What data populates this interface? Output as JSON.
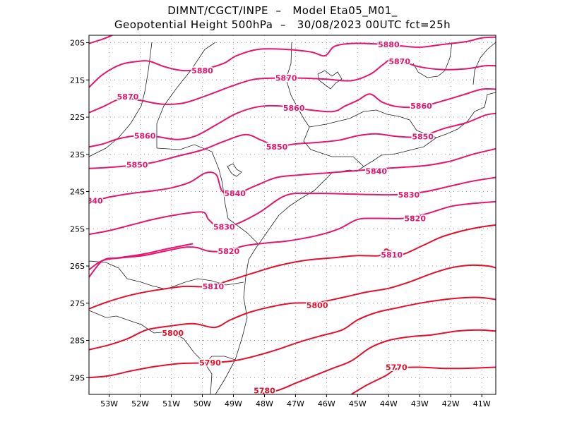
{
  "header": {
    "line1": "DIMNT/CGCT/INPE  –   Model Eta05_M01_",
    "line2": "Geopotential Height 500hPa  –   30/08/2023 00UTC fct=25h"
  },
  "map": {
    "lon_range": [
      -53.65,
      -40.55
    ],
    "lat_range": [
      -29.45,
      -19.8
    ],
    "lat_ticks": [
      {
        "value": -20,
        "label": "20S"
      },
      {
        "value": -21,
        "label": "21S"
      },
      {
        "value": -22,
        "label": "22S"
      },
      {
        "value": -23,
        "label": "23S"
      },
      {
        "value": -24,
        "label": "24S"
      },
      {
        "value": -25,
        "label": "25S"
      },
      {
        "value": -26,
        "label": "26S"
      },
      {
        "value": -27,
        "label": "27S"
      },
      {
        "value": -28,
        "label": "28S"
      },
      {
        "value": -29,
        "label": "29S"
      }
    ],
    "lon_ticks": [
      {
        "value": -53,
        "label": "53W"
      },
      {
        "value": -52,
        "label": "52W"
      },
      {
        "value": -51,
        "label": "51W"
      },
      {
        "value": -50,
        "label": "50W"
      },
      {
        "value": -49,
        "label": "49W"
      },
      {
        "value": -48,
        "label": "48W"
      },
      {
        "value": -47,
        "label": "47W"
      },
      {
        "value": -46,
        "label": "46W"
      },
      {
        "value": -45,
        "label": "45W"
      },
      {
        "value": -44,
        "label": "44W"
      },
      {
        "value": -43,
        "label": "43W"
      },
      {
        "value": -42,
        "label": "42W"
      },
      {
        "value": -41,
        "label": "41W"
      }
    ],
    "grid": true
  },
  "contours": [
    {
      "level": 5880,
      "color": "#e6156e",
      "points": [
        [
          -53.65,
          -20.02
        ],
        [
          -53.2,
          -19.9
        ],
        [
          -52.9,
          -19.8
        ]
      ]
    },
    {
      "level": 5880,
      "color": "#e6156e",
      "label": "5880",
      "labels_at": [
        [
          -50.0,
          -20.75
        ],
        [
          -44.0,
          -20.05
        ]
      ],
      "points": [
        [
          -53.65,
          -21.2
        ],
        [
          -53.2,
          -20.85
        ],
        [
          -52.6,
          -20.58
        ],
        [
          -52.05,
          -20.5
        ],
        [
          -51.7,
          -20.5
        ],
        [
          -51.2,
          -20.65
        ],
        [
          -50.6,
          -20.75
        ],
        [
          -49.9,
          -20.7
        ],
        [
          -49.3,
          -20.55
        ],
        [
          -48.9,
          -20.35
        ],
        [
          -48.2,
          -20.18
        ],
        [
          -47.3,
          -20.18
        ],
        [
          -46.5,
          -20.25
        ],
        [
          -46.05,
          -20.35
        ],
        [
          -45.75,
          -20.1
        ],
        [
          -45.2,
          -20.02
        ],
        [
          -44.5,
          -20.03
        ],
        [
          -43.8,
          -20.07
        ],
        [
          -43.0,
          -20.12
        ],
        [
          -42.3,
          -20.05
        ],
        [
          -41.5,
          -19.97
        ],
        [
          -41.0,
          -19.87
        ],
        [
          -40.55,
          -19.85
        ]
      ]
    },
    {
      "level": 5870,
      "color": "#e6156e",
      "label": "5870",
      "labels_at": [
        [
          -52.4,
          -21.45
        ],
        [
          -47.3,
          -20.95
        ],
        [
          -43.65,
          -20.5
        ]
      ],
      "points": [
        [
          -53.65,
          -21.88
        ],
        [
          -53.2,
          -21.72
        ],
        [
          -52.6,
          -21.5
        ],
        [
          -52.0,
          -21.55
        ],
        [
          -51.3,
          -21.65
        ],
        [
          -50.6,
          -21.62
        ],
        [
          -49.8,
          -21.4
        ],
        [
          -49.0,
          -21.15
        ],
        [
          -48.3,
          -20.98
        ],
        [
          -47.5,
          -20.95
        ],
        [
          -46.8,
          -20.95
        ],
        [
          -46.0,
          -20.98
        ],
        [
          -45.2,
          -21.02
        ],
        [
          -44.6,
          -20.85
        ],
        [
          -44.2,
          -20.6
        ],
        [
          -43.9,
          -20.45
        ],
        [
          -43.4,
          -20.55
        ],
        [
          -43.0,
          -20.65
        ],
        [
          -42.3,
          -20.72
        ],
        [
          -41.5,
          -20.7
        ],
        [
          -40.9,
          -20.62
        ],
        [
          -40.55,
          -20.62
        ]
      ]
    },
    {
      "level": 5860,
      "color": "#e6156e",
      "label": "5860",
      "labels_at": [
        [
          -51.85,
          -22.5
        ],
        [
          -47.05,
          -21.75
        ],
        [
          -42.95,
          -21.7
        ]
      ],
      "points": [
        [
          -53.65,
          -22.8
        ],
        [
          -53.2,
          -22.72
        ],
        [
          -52.7,
          -22.58
        ],
        [
          -52.1,
          -22.5
        ],
        [
          -51.5,
          -22.52
        ],
        [
          -50.8,
          -22.6
        ],
        [
          -50.2,
          -22.5
        ],
        [
          -49.5,
          -22.18
        ],
        [
          -48.9,
          -21.9
        ],
        [
          -48.2,
          -21.72
        ],
        [
          -47.5,
          -21.7
        ],
        [
          -46.6,
          -21.8
        ],
        [
          -45.8,
          -21.85
        ],
        [
          -45.4,
          -21.7
        ],
        [
          -45.0,
          -21.55
        ],
        [
          -44.6,
          -21.38
        ],
        [
          -44.2,
          -21.6
        ],
        [
          -43.7,
          -21.72
        ],
        [
          -43.0,
          -21.72
        ],
        [
          -42.2,
          -21.55
        ],
        [
          -41.6,
          -21.4
        ],
        [
          -41.0,
          -21.25
        ],
        [
          -40.55,
          -21.25
        ]
      ]
    },
    {
      "level": 5850,
      "color": "#e6156e",
      "label": "5850",
      "labels_at": [
        [
          -52.1,
          -23.28
        ],
        [
          -47.6,
          -22.8
        ],
        [
          -42.9,
          -22.52
        ]
      ],
      "points": [
        [
          -53.65,
          -23.38
        ],
        [
          -53.0,
          -23.35
        ],
        [
          -52.3,
          -23.3
        ],
        [
          -51.6,
          -23.22
        ],
        [
          -50.8,
          -23.05
        ],
        [
          -50.0,
          -22.88
        ],
        [
          -49.3,
          -22.65
        ],
        [
          -48.6,
          -22.47
        ],
        [
          -48.1,
          -22.62
        ],
        [
          -47.6,
          -22.78
        ],
        [
          -47.0,
          -22.72
        ],
        [
          -46.3,
          -22.68
        ],
        [
          -45.6,
          -22.62
        ],
        [
          -45.0,
          -22.5
        ],
        [
          -44.4,
          -22.45
        ],
        [
          -43.7,
          -22.52
        ],
        [
          -43.0,
          -22.52
        ],
        [
          -42.2,
          -22.3
        ],
        [
          -41.5,
          -22.15
        ],
        [
          -40.9,
          -21.95
        ],
        [
          -40.55,
          -21.9
        ]
      ]
    },
    {
      "level": 5840,
      "color": "#e6156e",
      "label": "5840",
      "labels_at": [
        [
          -53.55,
          -24.25
        ],
        [
          -48.95,
          -24.05
        ],
        [
          -44.4,
          -23.45
        ]
      ],
      "points": [
        [
          -53.65,
          -24.28
        ],
        [
          -53.0,
          -24.15
        ],
        [
          -52.3,
          -24.05
        ],
        [
          -51.6,
          -23.98
        ],
        [
          -51.0,
          -23.9
        ],
        [
          -50.4,
          -23.75
        ],
        [
          -49.9,
          -23.5
        ],
        [
          -49.55,
          -23.55
        ],
        [
          -49.35,
          -24.0
        ],
        [
          -48.9,
          -24.05
        ],
        [
          -48.3,
          -23.85
        ],
        [
          -47.6,
          -23.62
        ],
        [
          -46.8,
          -23.55
        ],
        [
          -46.0,
          -23.5
        ],
        [
          -45.2,
          -23.45
        ],
        [
          -44.5,
          -23.4
        ],
        [
          -43.6,
          -23.35
        ],
        [
          -42.8,
          -23.3
        ],
        [
          -42.0,
          -23.18
        ],
        [
          -41.3,
          -23.0
        ],
        [
          -40.55,
          -22.85
        ]
      ]
    },
    {
      "level": 5830,
      "color": "#e6156e",
      "label": "5830",
      "labels_at": [
        [
          -49.3,
          -24.95
        ],
        [
          -43.35,
          -24.08
        ]
      ],
      "points": [
        [
          -53.65,
          -25.15
        ],
        [
          -53.0,
          -25.05
        ],
        [
          -52.3,
          -24.9
        ],
        [
          -51.6,
          -24.75
        ],
        [
          -50.8,
          -24.62
        ],
        [
          -50.0,
          -24.55
        ],
        [
          -49.8,
          -24.75
        ],
        [
          -49.5,
          -24.93
        ],
        [
          -49.0,
          -24.9
        ],
        [
          -48.2,
          -24.58
        ],
        [
          -47.3,
          -24.1
        ],
        [
          -46.4,
          -24.05
        ],
        [
          -45.5,
          -24.06
        ],
        [
          -44.6,
          -24.08
        ],
        [
          -43.6,
          -24.08
        ],
        [
          -42.8,
          -24.0
        ],
        [
          -42.0,
          -23.85
        ],
        [
          -41.3,
          -23.72
        ],
        [
          -40.55,
          -23.62
        ]
      ]
    },
    {
      "level": 5820,
      "color": "#e6156e",
      "label": "5820",
      "labels_at": [
        [
          -49.15,
          -25.6
        ],
        [
          -43.15,
          -24.72
        ]
      ],
      "points": [
        [
          -53.65,
          -26.1
        ],
        [
          -53.2,
          -25.85
        ],
        [
          -52.6,
          -25.78
        ],
        [
          -51.9,
          -25.72
        ],
        [
          -51.2,
          -25.6
        ],
        [
          -50.6,
          -25.5
        ],
        [
          -50.2,
          -25.5
        ],
        [
          -49.8,
          -25.6
        ],
        [
          -49.3,
          -25.6
        ],
        [
          -48.6,
          -25.45
        ],
        [
          -47.9,
          -25.38
        ],
        [
          -47.2,
          -25.32
        ],
        [
          -46.3,
          -25.18
        ],
        [
          -45.6,
          -25.0
        ],
        [
          -45.0,
          -24.75
        ],
        [
          -44.4,
          -24.72
        ],
        [
          -43.5,
          -24.72
        ],
        [
          -42.8,
          -24.6
        ],
        [
          -42.0,
          -24.4
        ],
        [
          -41.3,
          -24.32
        ],
        [
          -40.55,
          -24.27
        ]
      ]
    },
    {
      "level": 5810,
      "color": "#e6156e",
      "label": "5810",
      "labels_at": [
        [
          -49.65,
          -26.55
        ],
        [
          -43.9,
          -25.7
        ]
      ],
      "points": [
        [
          -53.65,
          -26.3
        ],
        [
          -53.2,
          -25.85
        ],
        [
          -52.7,
          -25.78
        ],
        [
          -51.9,
          -25.68
        ],
        [
          -51.2,
          -25.55
        ],
        [
          -50.3,
          -25.4
        ]
      ]
    },
    {
      "level": 5810,
      "color": "#e60f2b",
      "label": "5810",
      "labels_at": [
        [
          -49.65,
          -26.55
        ],
        [
          -43.9,
          -25.7
        ]
      ],
      "points": [
        [
          -53.65,
          -27.15
        ],
        [
          -53.0,
          -26.95
        ],
        [
          -52.3,
          -26.78
        ],
        [
          -51.5,
          -26.65
        ],
        [
          -50.6,
          -26.55
        ],
        [
          -49.8,
          -26.55
        ],
        [
          -49.1,
          -26.38
        ],
        [
          -48.4,
          -26.2
        ],
        [
          -47.6,
          -26.0
        ],
        [
          -46.7,
          -25.85
        ],
        [
          -45.8,
          -25.78
        ],
        [
          -45.0,
          -25.72
        ],
        [
          -44.3,
          -25.72
        ],
        [
          -44.1,
          -25.55
        ],
        [
          -43.95,
          -25.6
        ],
        [
          -43.6,
          -25.7
        ],
        [
          -42.9,
          -25.45
        ],
        [
          -42.3,
          -25.22
        ],
        [
          -41.6,
          -25.05
        ],
        [
          -41.0,
          -24.95
        ],
        [
          -40.55,
          -24.9
        ]
      ]
    },
    {
      "level": 5800,
      "color": "#e60f2b",
      "label": "5800",
      "labels_at": [
        [
          -50.95,
          -27.8
        ],
        [
          -46.3,
          -27.05
        ]
      ],
      "points": [
        [
          -53.65,
          -28.25
        ],
        [
          -53.0,
          -28.12
        ],
        [
          -52.4,
          -27.95
        ],
        [
          -51.8,
          -27.72
        ],
        [
          -51.1,
          -27.62
        ],
        [
          -50.3,
          -27.55
        ],
        [
          -49.6,
          -27.65
        ],
        [
          -49.1,
          -27.45
        ],
        [
          -48.5,
          -27.25
        ],
        [
          -47.8,
          -27.1
        ],
        [
          -47.1,
          -27.0
        ],
        [
          -46.3,
          -26.98
        ],
        [
          -45.5,
          -26.85
        ],
        [
          -44.7,
          -26.7
        ],
        [
          -44.0,
          -26.6
        ],
        [
          -43.3,
          -26.42
        ],
        [
          -42.6,
          -26.2
        ],
        [
          -42.0,
          -26.05
        ],
        [
          -41.4,
          -25.98
        ],
        [
          -40.8,
          -26.0
        ],
        [
          -40.55,
          -26.05
        ]
      ]
    },
    {
      "level": 5790,
      "color": "#e60f2b",
      "label": "5790",
      "labels_at": [
        [
          -49.75,
          -28.6
        ]
      ],
      "points": [
        [
          -53.65,
          -29.0
        ],
        [
          -53.0,
          -28.95
        ],
        [
          -52.3,
          -28.82
        ],
        [
          -51.5,
          -28.7
        ],
        [
          -50.7,
          -28.62
        ],
        [
          -49.8,
          -28.6
        ],
        [
          -49.0,
          -28.55
        ],
        [
          -48.3,
          -28.42
        ],
        [
          -47.6,
          -28.25
        ],
        [
          -46.9,
          -28.05
        ],
        [
          -46.2,
          -27.88
        ],
        [
          -45.5,
          -27.72
        ],
        [
          -45.0,
          -27.45
        ],
        [
          -44.4,
          -27.25
        ],
        [
          -43.7,
          -27.12
        ],
        [
          -43.0,
          -27.0
        ],
        [
          -42.2,
          -26.9
        ],
        [
          -41.5,
          -26.85
        ],
        [
          -41.0,
          -26.85
        ],
        [
          -40.55,
          -26.9
        ]
      ]
    },
    {
      "level": 5780,
      "color": "#e60f2b",
      "label": "5780",
      "labels_at": [
        [
          -48.0,
          -29.35
        ]
      ],
      "points": [
        [
          -48.3,
          -29.45
        ],
        [
          -47.6,
          -29.35
        ],
        [
          -47.0,
          -29.15
        ],
        [
          -46.4,
          -28.95
        ],
        [
          -45.8,
          -28.75
        ],
        [
          -45.2,
          -28.55
        ],
        [
          -44.6,
          -28.2
        ],
        [
          -44.0,
          -28.0
        ],
        [
          -43.3,
          -27.9
        ],
        [
          -42.6,
          -27.85
        ],
        [
          -41.8,
          -27.75
        ],
        [
          -41.1,
          -27.72
        ],
        [
          -40.55,
          -27.75
        ]
      ]
    },
    {
      "level": 5770,
      "color": "#e60f2b",
      "label": "5770",
      "labels_at": [
        [
          -43.75,
          -28.72
        ]
      ],
      "points": [
        [
          -45.2,
          -29.45
        ],
        [
          -44.7,
          -29.2
        ],
        [
          -44.1,
          -28.95
        ],
        [
          -43.7,
          -28.75
        ],
        [
          -43.0,
          -28.72
        ],
        [
          -42.3,
          -28.75
        ],
        [
          -41.5,
          -28.75
        ],
        [
          -40.55,
          -28.72
        ]
      ]
    }
  ]
}
